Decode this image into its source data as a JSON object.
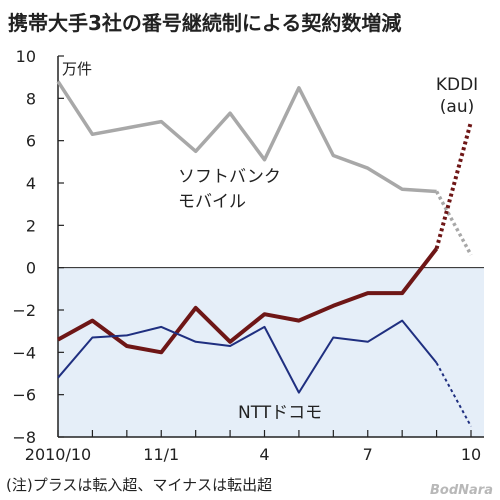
{
  "chart_data": {
    "type": "line",
    "title": "携帯大手3社の番号継続制による契約数増減",
    "ylabel": "万件",
    "ylim": [
      -8,
      10
    ],
    "yticks": [
      10,
      8,
      6,
      4,
      2,
      0,
      -2,
      -4,
      -6,
      -8
    ],
    "x_months": [
      "2010-10",
      "2010-11",
      "2010-12",
      "2011-01",
      "2011-02",
      "2011-03",
      "2011-04",
      "2011-05",
      "2011-06",
      "2011-07",
      "2011-08",
      "2011-09",
      "2011-10"
    ],
    "xtick_labels": [
      "2010/10",
      "",
      "",
      "11/1",
      "",
      "",
      "4",
      "",
      "",
      "7",
      "",
      "",
      "10"
    ],
    "shade_below_zero": true,
    "note": "(注)プラスは転入超、マイナスは転出超",
    "series": [
      {
        "name": "ソフトバンク\nモバイル",
        "label_lines": [
          "ソフトバンク",
          "モバイル"
        ],
        "color": "#a8a8a8",
        "values": [
          8.8,
          6.3,
          6.6,
          6.9,
          5.5,
          7.3,
          5.1,
          8.5,
          5.3,
          4.7,
          3.7,
          3.6,
          0.6
        ],
        "dotted_last_segment": true
      },
      {
        "name": "KDDI\n(au)",
        "label_lines": [
          "KDDI",
          "(au)"
        ],
        "color": "#6e1616",
        "values": [
          -3.4,
          -2.5,
          -3.7,
          -4.0,
          -1.9,
          -3.5,
          -2.2,
          -2.5,
          -1.8,
          -1.2,
          -1.2,
          0.9,
          6.9
        ],
        "dotted_last_segment": true
      },
      {
        "name": "NTTドコモ",
        "label_lines": [
          "NTTドコモ"
        ],
        "color": "#1f2f80",
        "values": [
          -5.2,
          -3.3,
          -3.2,
          -2.8,
          -3.5,
          -3.7,
          -2.8,
          -5.9,
          -3.3,
          -3.5,
          -2.5,
          -4.5,
          -7.5
        ],
        "dotted_last_segment": true
      }
    ]
  },
  "watermark": "BodNara"
}
